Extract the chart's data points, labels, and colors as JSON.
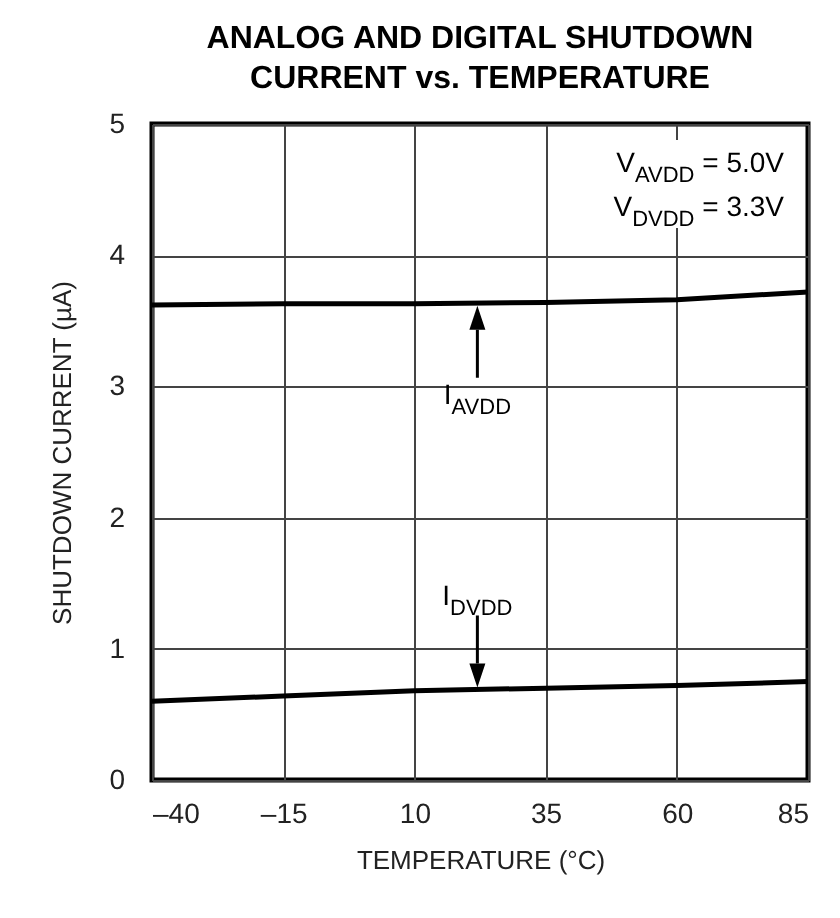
{
  "chart_data": {
    "type": "line",
    "title": "ANALOG AND DIGITAL SHUTDOWN CURRENT vs. TEMPERATURE",
    "xlabel": "TEMPERATURE (°C)",
    "ylabel": "SHUTDOWN CURRENT (µA)",
    "x": [
      -40,
      -15,
      10,
      35,
      60,
      85
    ],
    "series": [
      {
        "color": "#000000",
        "values": [
          3.62,
          3.63,
          3.63,
          3.64,
          3.66,
          3.72
        ]
      },
      {
        "color": "#000000",
        "values": [
          0.6,
          0.64,
          0.68,
          0.7,
          0.72,
          0.75
        ]
      }
    ],
    "xlim": [
      -40,
      85
    ],
    "xticks": [
      {
        "value": -40,
        "label": "–40"
      },
      {
        "value": -15,
        "label": "–15"
      },
      10,
      35,
      60,
      85
    ],
    "ylim": [
      0,
      5
    ],
    "yticks": [
      0,
      1,
      2,
      3,
      4,
      5
    ],
    "grid": true,
    "marker": "none",
    "line_style": "solid",
    "annotations": [
      "V$_{AVDD}$ = 5.0V",
      "V$_{DVDD}$ = 3.3V",
      {
        "text": "I$_{AVDD}$",
        "x": 22,
        "y": 3.63
      },
      {
        "text": "I$_{DVDD}$",
        "x": 22,
        "y": 0.69
      }
    ]
  }
}
